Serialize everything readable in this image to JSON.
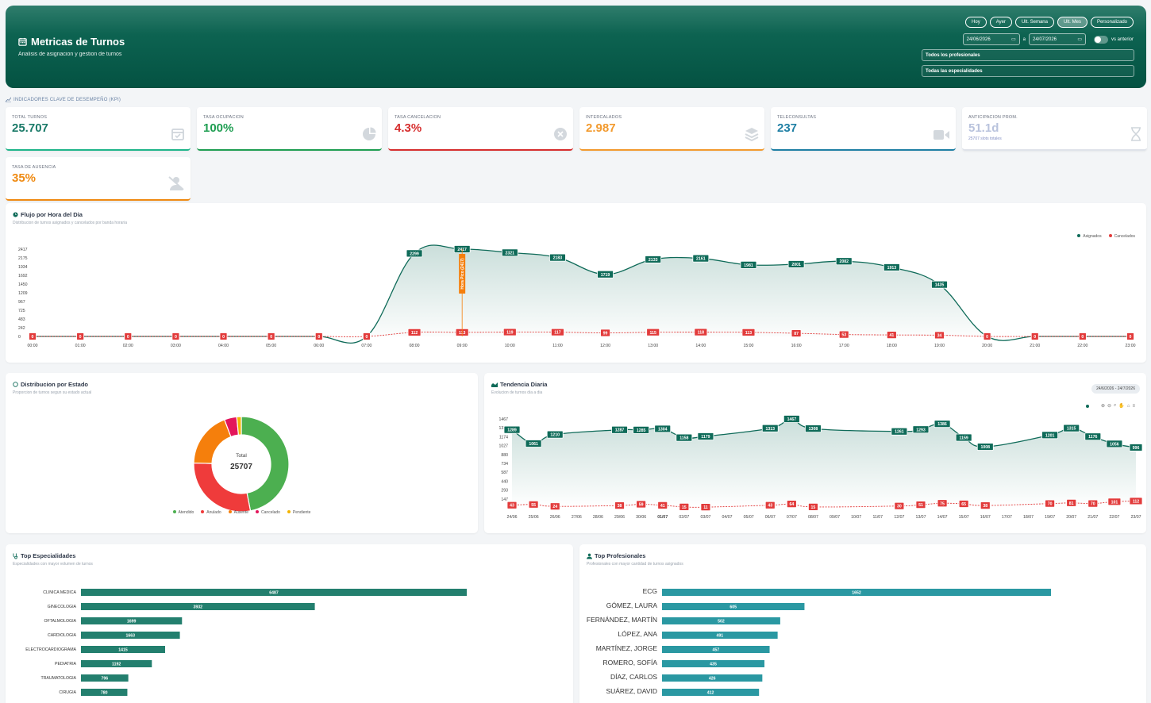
{
  "header": {
    "title": "Metricas de Turnos",
    "subtitle": "Analisis de asignacion y gestion de turnos",
    "periods": [
      {
        "label": "Hoy",
        "active": false
      },
      {
        "label": "Ayer",
        "active": false
      },
      {
        "label": "Ult. Semana",
        "active": false
      },
      {
        "label": "Ult. Mes",
        "active": true
      },
      {
        "label": "Personalizado",
        "active": false
      }
    ],
    "date_from": "24/06/2026",
    "date_sep": "a",
    "date_to": "24/07/2026",
    "compare_label": "vs anterior",
    "filter_professionals": "Todos los profesionales",
    "filter_specialties": "Todas las especialidades"
  },
  "kpi_section_label": "INDICADORES CLAVE DE DESEMPEÑO (KPI)",
  "kpis": [
    {
      "label": "TOTAL TURNOS",
      "value": "25.707",
      "sub": "",
      "color": "#1a7a68",
      "border": "#1fb58a",
      "icon": "calendar-check-icon"
    },
    {
      "label": "TASA OCUPACION",
      "value": "100%",
      "sub": "",
      "color": "#1f9e52",
      "border": "#1f9e52",
      "icon": "pie-icon"
    },
    {
      "label": "TASA CANCELACION",
      "value": "4.3%",
      "sub": "",
      "color": "#d62e2e",
      "border": "#d62e2e",
      "icon": "close-circle-icon"
    },
    {
      "label": "INTERCALADOS",
      "value": "2.987",
      "sub": "",
      "color": "#f29a2e",
      "border": "#f29a2e",
      "icon": "layers-icon"
    },
    {
      "label": "TELECONSULTAS",
      "value": "237",
      "sub": "",
      "color": "#1f7fa4",
      "border": "#1f7fa4",
      "icon": "video-icon"
    },
    {
      "label": "ANTICIPACION PROM.",
      "value": "51.1d",
      "sub": "25707 slots totales",
      "color": "#b9c3dd",
      "border": "#dfe3ea",
      "icon": "hourglass-icon"
    },
    {
      "label": "TASA DE AUSENCIA",
      "value": "35%",
      "sub": "",
      "color": "#ef8a12",
      "border": "#ef8a12",
      "icon": "user-off-icon"
    }
  ],
  "flow": {
    "title": "Flujo por Hora del Dia",
    "subtitle": "Distribucion de turnos asignados y cancelados por banda horaria",
    "legend": [
      {
        "name": "Asignados",
        "color": "#0f6b59"
      },
      {
        "name": "Cancelados",
        "color": "#e23b3b"
      }
    ],
    "peak_label": "Hora Pico (2417)"
  },
  "status": {
    "title": "Distribucion por Estado",
    "subtitle": "Proporcion de turnos segun su estado actual",
    "center_label": "Total",
    "center_value": "25707"
  },
  "trend": {
    "title": "Tendencia Diaria",
    "subtitle": "Evolucion de turnos dia a dia",
    "badge": "24/6/2026 - 24/7/2026"
  },
  "specialties": {
    "title": "Top Especialidades",
    "subtitle": "Especialidades con mayor volumen de turnos"
  },
  "professionals": {
    "title": "Top Profesionales",
    "subtitle": "Profesionales con mayor cantidad de turnos asignados"
  },
  "chart_data": [
    {
      "type": "area",
      "id": "flow",
      "x": [
        "00:00",
        "01:00",
        "02:00",
        "03:00",
        "04:00",
        "05:00",
        "06:00",
        "07:00",
        "08:00",
        "09:00",
        "10:00",
        "11:00",
        "12:00",
        "13:00",
        "14:00",
        "15:00",
        "16:00",
        "17:00",
        "18:00",
        "19:00",
        "20:00",
        "21:00",
        "22:00",
        "23:00"
      ],
      "yticks": [
        0,
        242,
        483,
        725,
        967,
        1209,
        1450,
        1692,
        1934,
        2175,
        2417
      ],
      "ylim": [
        0,
        2417
      ],
      "series": [
        {
          "name": "Asignados",
          "color": "#0f6b59",
          "values": [
            0,
            0,
            0,
            0,
            0,
            0,
            0,
            0,
            2299,
            2417,
            2321,
            2183,
            1719,
            2133,
            2161,
            1981,
            2001,
            2082,
            1913,
            1435,
            0,
            0,
            0,
            0
          ]
        },
        {
          "name": "Cancelados",
          "color": "#e23b3b",
          "values": [
            0,
            0,
            0,
            0,
            0,
            0,
            0,
            0,
            112,
            113,
            119,
            117,
            99,
            115,
            118,
            113,
            87,
            53,
            41,
            34,
            0,
            0,
            0,
            0
          ]
        }
      ]
    },
    {
      "type": "pie",
      "id": "status",
      "labels": [
        "Atendido",
        "Anulado",
        "Ausente",
        "Cancelado",
        "Pendiente"
      ],
      "colors": [
        "#4caf50",
        "#ef3b3b",
        "#f57f0c",
        "#e3165b",
        "#f4b400"
      ],
      "values": [
        12200,
        7400,
        4900,
        1100,
        400
      ]
    },
    {
      "type": "area",
      "id": "trend",
      "x": [
        "24/06",
        "25/06",
        "26/06",
        "27/06",
        "28/06",
        "29/06",
        "30/06",
        "01/07",
        "02/07",
        "03/07",
        "04/07",
        "05/07",
        "06/07",
        "07/07",
        "08/07",
        "09/07",
        "10/07",
        "11/07",
        "12/07",
        "13/07",
        "14/07",
        "15/07",
        "16/07",
        "17/07",
        "18/07",
        "19/07",
        "20/07",
        "21/07",
        "22/07",
        "23/07"
      ],
      "bold_ticks": [
        "01/07"
      ],
      "yticks": [
        147,
        293,
        440,
        587,
        734,
        880,
        1027,
        1174,
        1321,
        1467
      ],
      "ylim": [
        0,
        1467
      ],
      "series": [
        {
          "name": "Asignados",
          "color": "#0f6b59",
          "values": [
            1289,
            1061,
            1210,
            null,
            null,
            1287,
            1285,
            1304,
            1158,
            1179,
            null,
            null,
            1313,
            1467,
            1308,
            null,
            null,
            null,
            1261,
            1293,
            1386,
            1159,
            1008,
            null,
            null,
            1201,
            1315,
            1176,
            1056,
            996
          ]
        },
        {
          "name": "Cancelados",
          "color": "#e23b3b",
          "values": [
            43,
            55,
            24,
            null,
            null,
            38,
            59,
            41,
            15,
            11,
            null,
            null,
            43,
            64,
            15,
            null,
            null,
            null,
            30,
            51,
            75,
            65,
            38,
            null,
            null,
            70,
            81,
            70,
            101,
            112
          ]
        }
      ]
    },
    {
      "type": "bar",
      "id": "specialties",
      "orientation": "horizontal",
      "color": "#237f6e",
      "categories": [
        "CLINICA MEDICA",
        "GINECOLOGIA",
        "OFTALMOLOGIA",
        "CARDIOLOGIA",
        "ELECTROCARDIOGRAMA",
        "PEDIATRIA",
        "TRAUMATOLOGIA",
        "CIRUGIA"
      ],
      "values": [
        6487,
        3932,
        1699,
        1663,
        1415,
        1192,
        796,
        780
      ]
    },
    {
      "type": "bar",
      "id": "professionals",
      "orientation": "horizontal",
      "color": "#2a98a2",
      "categories": [
        "ECG",
        "GÓMEZ, LAURA",
        "FERNÁNDEZ, MARTÍN",
        "LÓPEZ, ANA",
        "MARTÍNEZ, JORGE",
        "ROMERO, SOFÍA",
        "DÍAZ, CARLOS",
        "SUÁREZ, DAVID"
      ],
      "values": [
        1652,
        605,
        502,
        491,
        457,
        435,
        426,
        412
      ]
    }
  ]
}
